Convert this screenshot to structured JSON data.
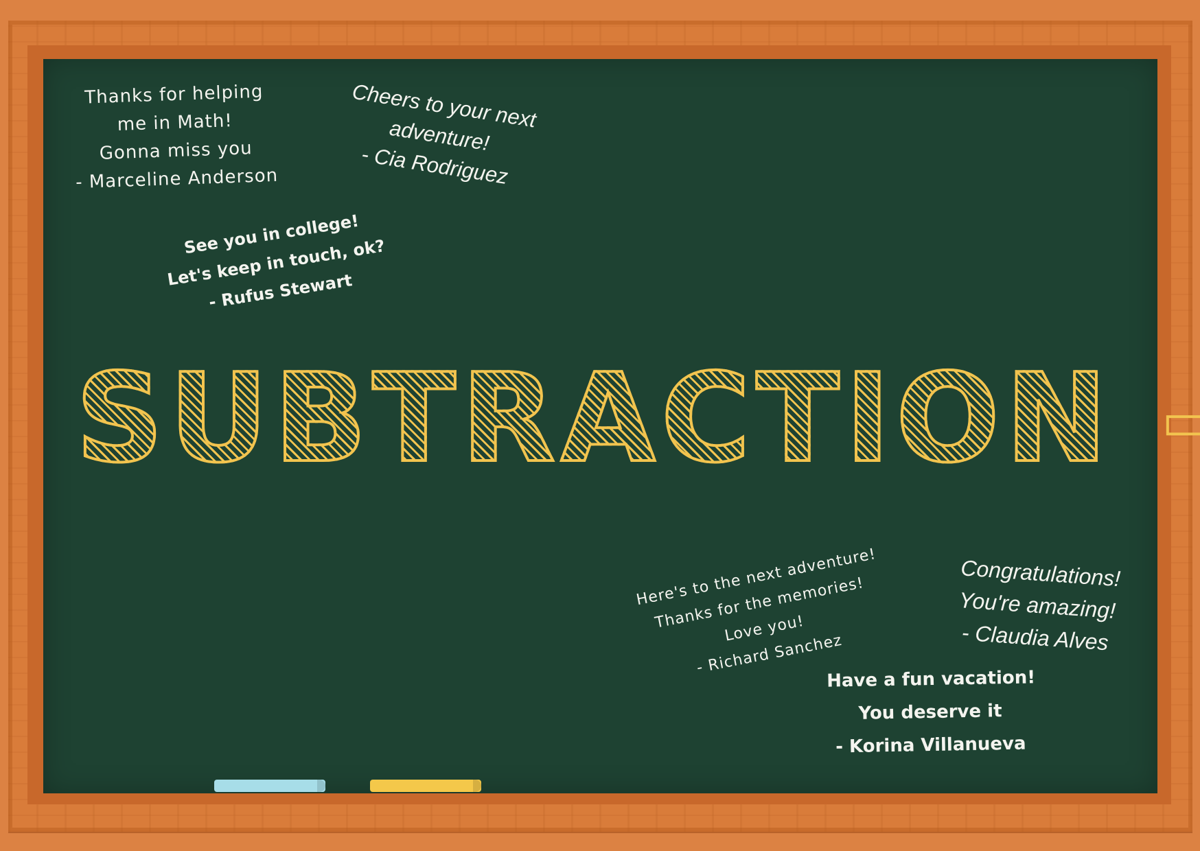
{
  "board": {
    "title": "SUBTRACTION -",
    "notes": [
      {
        "lines": [
          "Thanks for helping",
          "me in Math!",
          "Gonna miss you",
          "- Marceline Anderson"
        ]
      },
      {
        "lines": [
          "Cheers to your next",
          "adventure!",
          "- Cia Rodriguez"
        ]
      },
      {
        "lines": [
          "See you in college!",
          "Let's keep in touch, ok?",
          "- Rufus Stewart"
        ]
      },
      {
        "lines": [
          "Here's to the next adventure!",
          "Thanks for the memories!",
          "Love you!",
          "- Richard Sanchez"
        ]
      },
      {
        "lines": [
          "Congratulations!",
          "You're amazing!",
          "- Claudia Alves"
        ]
      },
      {
        "lines": [
          "Have a fun vacation!",
          "You deserve it",
          "- Korina Villanueva"
        ]
      }
    ]
  },
  "colors": {
    "frame": "#dc8243",
    "board": "#1e4232",
    "title": "#f2c44f",
    "chalk_blue": "#a7dde8",
    "chalk_yellow": "#f4c84a"
  }
}
